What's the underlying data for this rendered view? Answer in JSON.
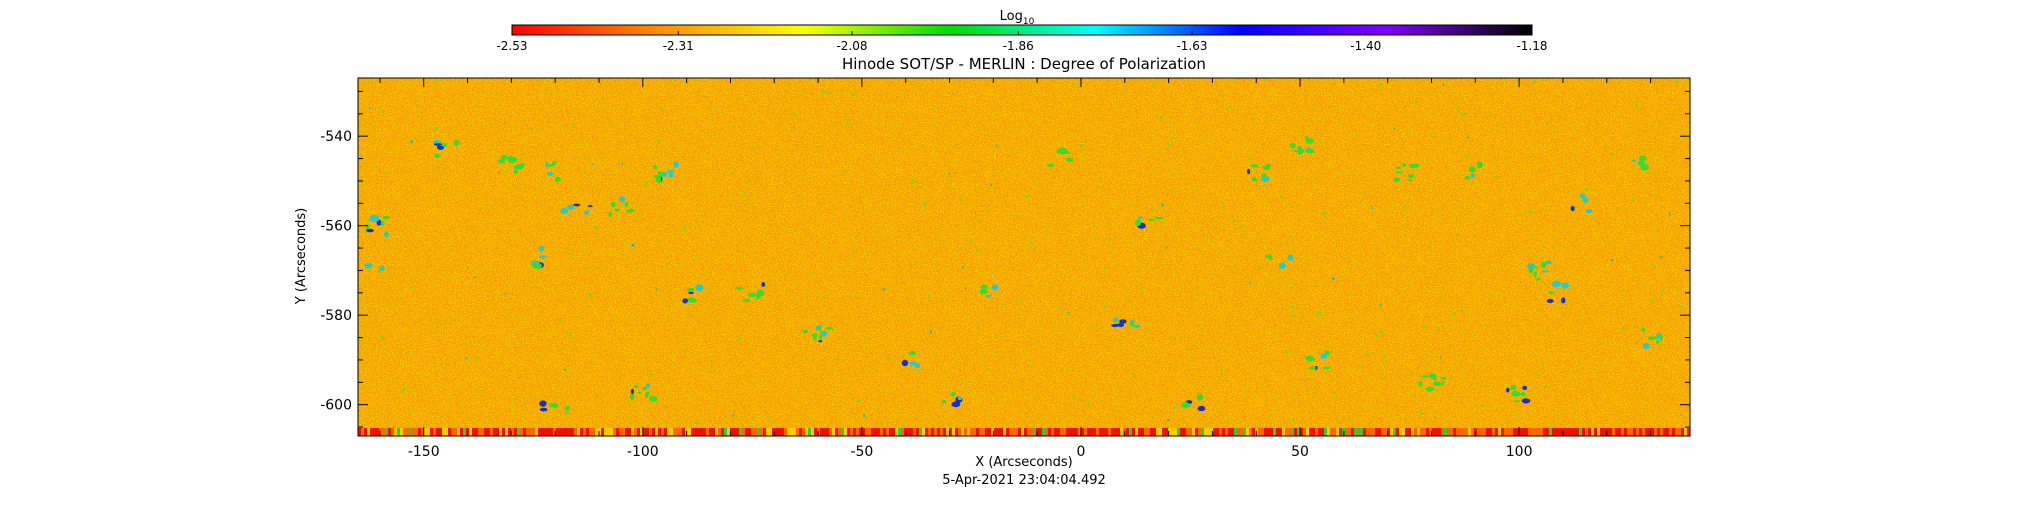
{
  "chart_data": {
    "type": "heatmap",
    "title": "Hinode SOT/SP - MERLIN : Degree of Polarization",
    "xlabel": "X (Arcseconds)",
    "ylabel": "Y (Arcseconds)",
    "timestamp": "5-Apr-2021 23:04:04.492",
    "colorbar": {
      "label_base": "Log",
      "label_sub": "10",
      "range": [
        -2.53,
        -1.18
      ],
      "tick_values": [
        -2.53,
        -2.31,
        -2.08,
        -1.86,
        -1.63,
        -1.4,
        -1.18
      ],
      "tick_labels": [
        "-2.53",
        "-2.31",
        "-2.08",
        "-1.86",
        "-1.63",
        "-1.40",
        "-1.18"
      ],
      "colors": [
        "#ff0000",
        "#ff8c00",
        "#ffff00",
        "#00dd00",
        "#00ffff",
        "#0000ff",
        "#8000ff",
        "#000000"
      ]
    },
    "xlim": [
      -165,
      139
    ],
    "ylim": [
      -607,
      -527
    ],
    "xticks": [
      -150,
      -100,
      -50,
      0,
      50,
      100
    ],
    "xtick_labels": [
      "-150",
      "-100",
      "-50",
      "0",
      "50",
      "100"
    ],
    "yticks": [
      -600,
      -580,
      -560,
      -540
    ],
    "ytick_labels": [
      "-600",
      "-580",
      "-560",
      "-540"
    ],
    "grid": false,
    "description_values": {
      "background_level_approx": -2.35,
      "features_level_approx": [
        -1.9,
        -1.5
      ]
    }
  }
}
